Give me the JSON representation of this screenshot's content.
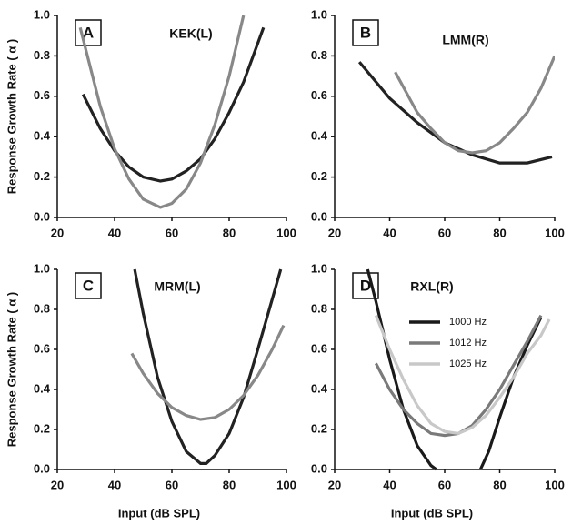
{
  "chart_data": [
    {
      "type": "line",
      "panel": "A",
      "title": "KEK(L)",
      "ylabel": "Response Growth Rate ( α )",
      "xlim": [
        20,
        100
      ],
      "xticks": [
        20,
        40,
        60,
        80,
        100
      ],
      "ylim": [
        0,
        1
      ],
      "yticks": [
        {
          "value": 0,
          "label": "0.0"
        },
        0.2,
        0.4,
        0.6,
        0.8,
        {
          "value": 1,
          "label": "1.0"
        }
      ],
      "series": [
        {
          "color": "#222222",
          "x": [
            29,
            35,
            40,
            45,
            50,
            56,
            60,
            65,
            70,
            75,
            80,
            85,
            92
          ],
          "values": [
            0.61,
            0.44,
            0.33,
            0.25,
            0.2,
            0.18,
            0.19,
            0.23,
            0.29,
            0.39,
            0.52,
            0.67,
            0.94
          ]
        },
        {
          "color": "#888888",
          "x": [
            28,
            35,
            40,
            45,
            50,
            56,
            60,
            65,
            70,
            75,
            80,
            85
          ],
          "values": [
            0.94,
            0.55,
            0.34,
            0.19,
            0.09,
            0.05,
            0.07,
            0.14,
            0.27,
            0.46,
            0.7,
            1.0
          ]
        }
      ]
    },
    {
      "type": "line",
      "panel": "B",
      "title": "LMM(R)",
      "xlim": [
        20,
        100
      ],
      "xticks": [
        20,
        40,
        60,
        80,
        100
      ],
      "ylim": [
        0,
        1
      ],
      "yticks": [
        {
          "value": 0,
          "label": "0.0"
        },
        0.2,
        0.4,
        0.6,
        0.8,
        {
          "value": 1,
          "label": "1.0"
        }
      ],
      "series": [
        {
          "color": "#222222",
          "x": [
            29,
            40,
            50,
            60,
            70,
            80,
            85,
            90,
            99
          ],
          "values": [
            0.77,
            0.59,
            0.47,
            0.37,
            0.31,
            0.27,
            0.27,
            0.27,
            0.3
          ]
        },
        {
          "color": "#888888",
          "x": [
            42,
            50,
            55,
            60,
            65,
            70,
            75,
            80,
            85,
            90,
            95,
            100
          ],
          "values": [
            0.72,
            0.52,
            0.44,
            0.37,
            0.33,
            0.32,
            0.33,
            0.37,
            0.44,
            0.52,
            0.64,
            0.8
          ]
        }
      ]
    },
    {
      "type": "line",
      "panel": "C",
      "title": "MRM(L)",
      "ylabel": "Response Growth Rate ( α )",
      "xlabel": "Input (dB SPL)",
      "xlim": [
        20,
        100
      ],
      "xticks": [
        20,
        40,
        60,
        80,
        100
      ],
      "ylim": [
        0,
        1
      ],
      "yticks": [
        {
          "value": 0,
          "label": "0.0"
        },
        0.2,
        0.4,
        0.6,
        0.8,
        {
          "value": 1,
          "label": "1.0"
        }
      ],
      "series": [
        {
          "color": "#222222",
          "x": [
            47,
            50,
            55,
            60,
            65,
            70,
            72,
            75,
            80,
            85,
            90,
            95,
            98
          ],
          "values": [
            1.0,
            0.78,
            0.46,
            0.24,
            0.09,
            0.03,
            0.03,
            0.07,
            0.18,
            0.36,
            0.6,
            0.85,
            1.0
          ]
        },
        {
          "color": "#888888",
          "x": [
            46,
            50,
            55,
            60,
            65,
            70,
            75,
            80,
            85,
            90,
            95,
            99
          ],
          "values": [
            0.58,
            0.48,
            0.38,
            0.31,
            0.27,
            0.25,
            0.26,
            0.3,
            0.37,
            0.47,
            0.6,
            0.72
          ]
        }
      ]
    },
    {
      "type": "line",
      "panel": "D",
      "title": "RXL(R)",
      "xlabel": "Input (dB SPL)",
      "legend": "upper center",
      "xlim": [
        20,
        100
      ],
      "xticks": [
        20,
        40,
        60,
        80,
        100
      ],
      "ylim": [
        0,
        1
      ],
      "yticks": [
        {
          "value": 0,
          "label": "0.0"
        },
        0.2,
        0.4,
        0.6,
        0.8,
        {
          "value": 1,
          "label": "1.0"
        }
      ],
      "series": [
        {
          "name": "1000 Hz",
          "color": "#1a1a1a",
          "x": [
            32,
            35,
            40,
            45,
            50,
            55,
            57,
            65,
            73,
            76,
            80,
            85,
            90,
            95
          ],
          "values": [
            1.0,
            0.84,
            0.55,
            0.3,
            0.12,
            0.02,
            0.0,
            null,
            0.0,
            0.09,
            0.26,
            0.46,
            0.62,
            0.76
          ]
        },
        {
          "name": "1012 Hz",
          "color": "#7a7a7a",
          "x": [
            35,
            40,
            45,
            50,
            55,
            60,
            65,
            70,
            75,
            80,
            85,
            90,
            95
          ],
          "values": [
            0.53,
            0.4,
            0.3,
            0.23,
            0.18,
            0.17,
            0.18,
            0.22,
            0.3,
            0.4,
            0.52,
            0.64,
            0.77
          ]
        },
        {
          "name": "1025 Hz",
          "color": "#c8c8c8",
          "x": [
            35,
            40,
            45,
            50,
            55,
            60,
            65,
            70,
            75,
            80,
            85,
            90,
            95,
            98
          ],
          "values": [
            0.77,
            0.6,
            0.45,
            0.32,
            0.23,
            0.19,
            0.18,
            0.21,
            0.27,
            0.36,
            0.46,
            0.58,
            0.67,
            0.75
          ]
        }
      ]
    }
  ]
}
